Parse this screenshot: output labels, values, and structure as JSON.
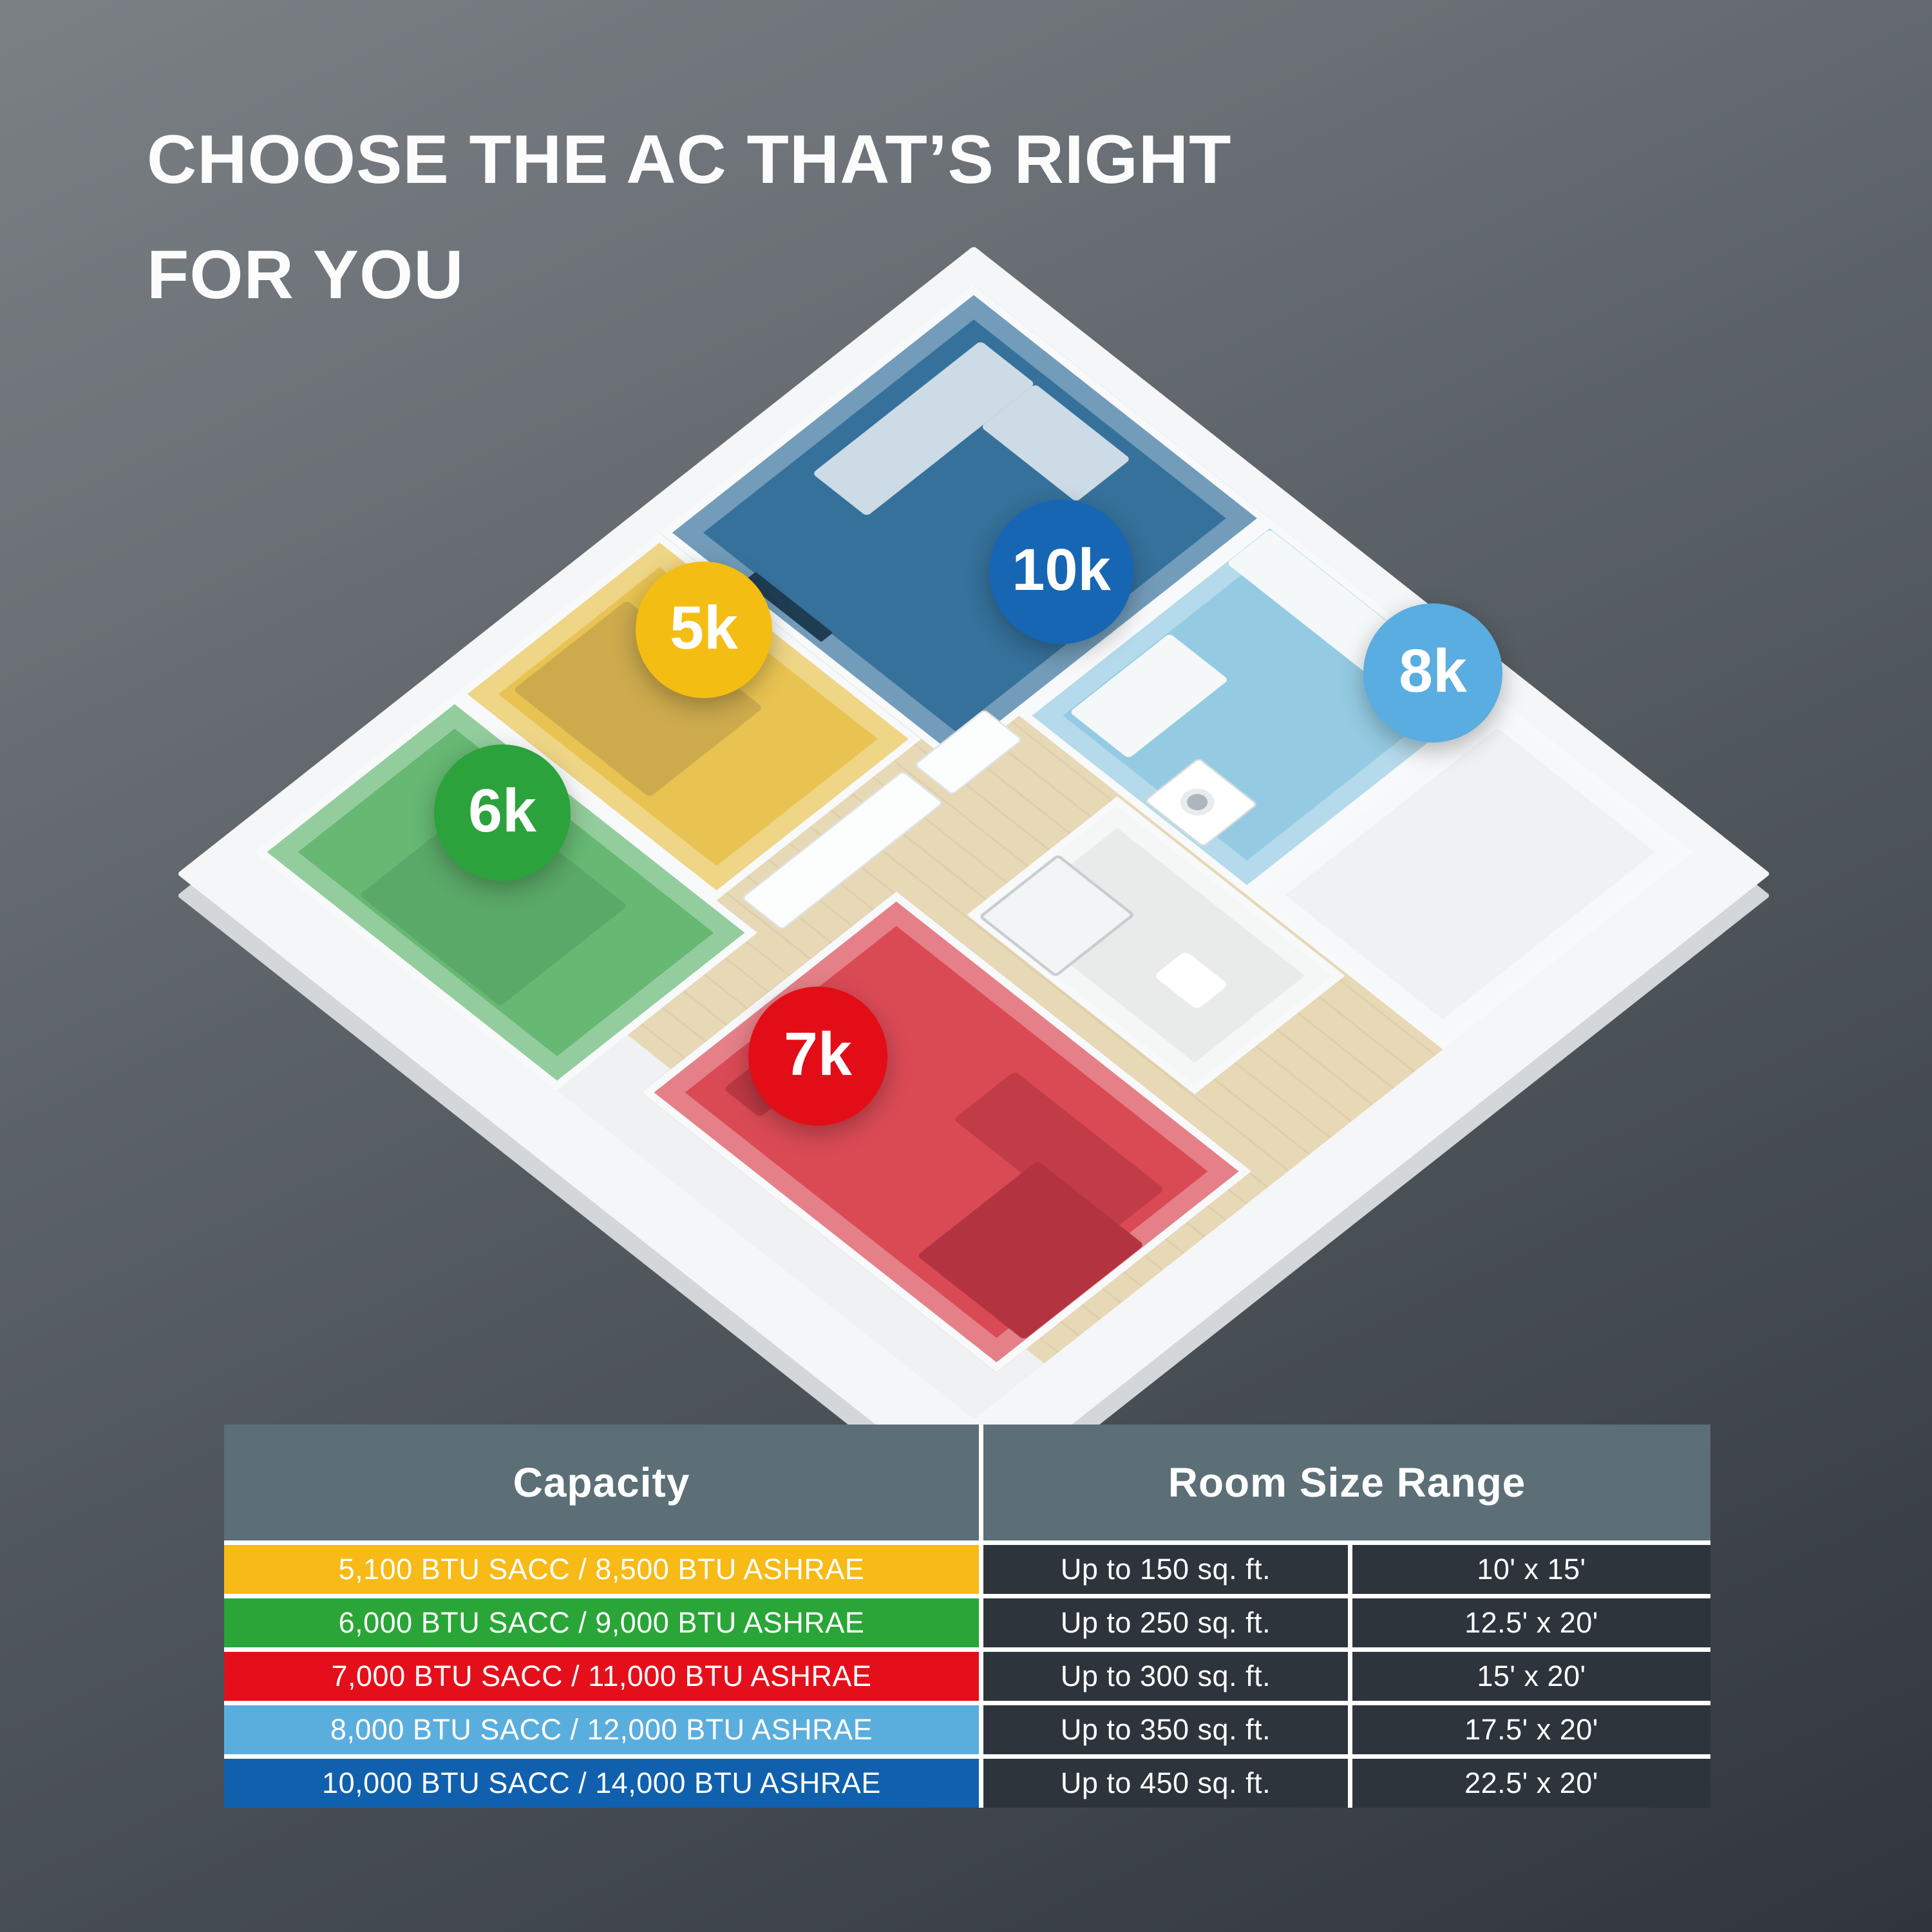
{
  "title": {
    "line1": "CHOOSE THE AC THAT’S RIGHT",
    "line2": "FOR YOU"
  },
  "floorplan": {
    "badges": [
      {
        "label": "5k",
        "color": "#f4bd13"
      },
      {
        "label": "6k",
        "color": "#2ba23c"
      },
      {
        "label": "7k",
        "color": "#e30d17"
      },
      {
        "label": "8k",
        "color": "#59ade0"
      },
      {
        "label": "10k",
        "color": "#1766b4"
      }
    ],
    "rooms": [
      {
        "name": "bedroom-5k",
        "color": "#e8c352"
      },
      {
        "name": "bedroom-6k",
        "color": "#66b873"
      },
      {
        "name": "office-7k",
        "color": "#da4a55"
      },
      {
        "name": "kitchen-8k",
        "color": "#94cbe2"
      },
      {
        "name": "living-room-10k",
        "color": "#35719b"
      }
    ]
  },
  "table": {
    "headers": [
      "Capacity",
      "Room Size Range"
    ],
    "rows": [
      {
        "capacity": "5,100 BTU SACC / 8,500 BTU ASHRAE",
        "room_size": "Up to 150 sq. ft.",
        "dimensions": "10' x 15'",
        "color": "#f7ba16"
      },
      {
        "capacity": "6,000 BTU SACC / 9,000 BTU ASHRAE",
        "room_size": "Up to 250 sq. ft.",
        "dimensions": "12.5' x 20'",
        "color": "#29a637"
      },
      {
        "capacity": "7,000 BTU SACC / 11,000 BTU ASHRAE",
        "room_size": "Up to 300 sq. ft.",
        "dimensions": "15' x 20'",
        "color": "#e50f1b"
      },
      {
        "capacity": "8,000 BTU SACC / 12,000 BTU ASHRAE",
        "room_size": "Up to 350 sq. ft.",
        "dimensions": "17.5' x 20'",
        "color": "#5aaede"
      },
      {
        "capacity": "10,000 BTU SACC / 14,000 BTU ASHRAE",
        "room_size": "Up to 450 sq. ft.",
        "dimensions": "22.5' x 20'",
        "color": "#1160ae"
      }
    ]
  },
  "colors": {
    "background_top": "#7b8085",
    "background_bottom": "#30363c",
    "header_bg": "#5c6e76",
    "dark_cell_bg": "#2d343b",
    "slab": "#f5f6f7"
  }
}
